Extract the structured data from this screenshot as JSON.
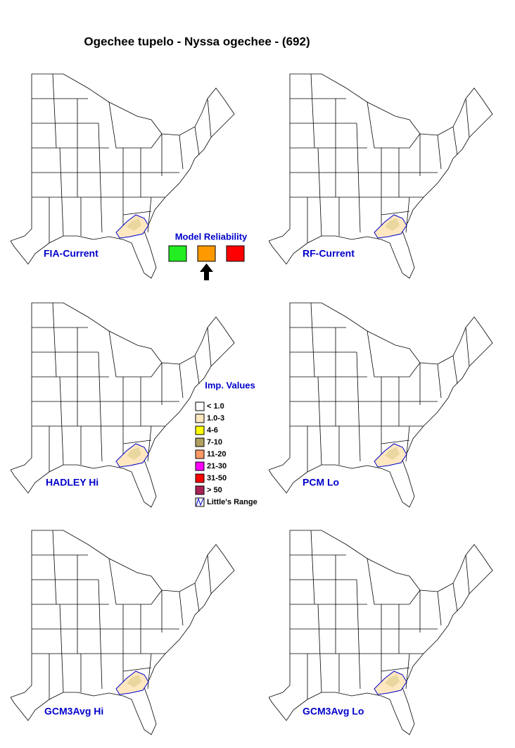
{
  "title": "Ogechee tupelo - Nyssa ogechee - (692)",
  "panels": [
    {
      "label": "FIA-Current"
    },
    {
      "label": "RF-Current"
    },
    {
      "label": "HADLEY Hi"
    },
    {
      "label": "PCM Lo"
    },
    {
      "label": "GCM3Avg Hi"
    },
    {
      "label": "GCM3Avg Lo"
    }
  ],
  "model_reliability": {
    "title": "Model Reliability",
    "colors": [
      "#22ee22",
      "#ff9900",
      "#ff0000"
    ],
    "selected": 1
  },
  "legend": {
    "title": "Imp. Values",
    "items": [
      {
        "label": "< 1.0",
        "color": "#ffffff"
      },
      {
        "label": "1.0-3",
        "color": "#ffe8c0"
      },
      {
        "label": "4-6",
        "color": "#ffff00"
      },
      {
        "label": "7-10",
        "color": "#b0a060"
      },
      {
        "label": "11-20",
        "color": "#ff9966"
      },
      {
        "label": "21-30",
        "color": "#ff00ff"
      },
      {
        "label": "31-50",
        "color": "#ff0000"
      },
      {
        "label": "> 50",
        "color": "#aa2255"
      },
      {
        "label": "Little's Range",
        "color": "range"
      }
    ]
  }
}
